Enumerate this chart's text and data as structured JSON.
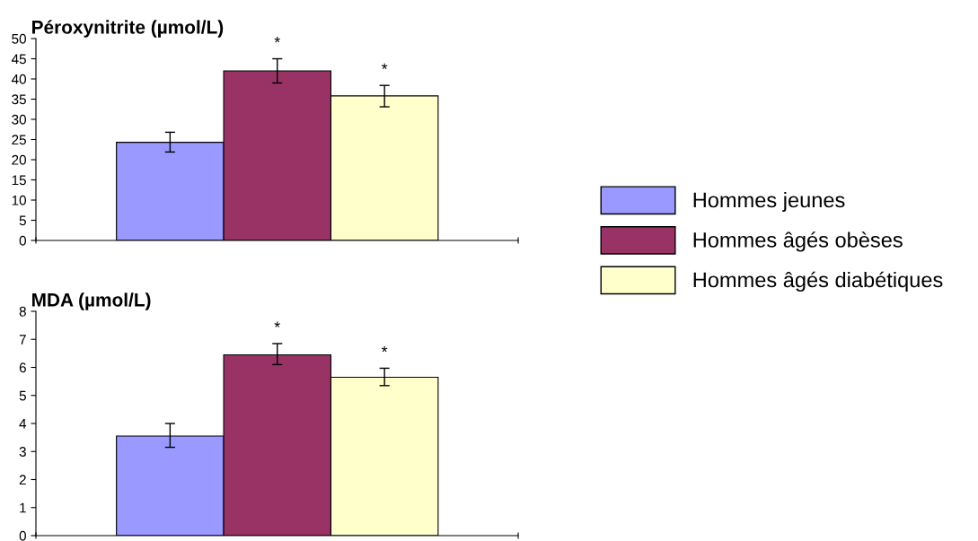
{
  "chart_data": [
    {
      "type": "bar",
      "title": "Péroxynitrite (µmol/L)",
      "categories": [
        null
      ],
      "ylim": [
        0,
        50
      ],
      "yticks": [
        0,
        5,
        10,
        15,
        20,
        25,
        30,
        35,
        40,
        45,
        50
      ],
      "grid": false,
      "legend": "right",
      "series": [
        {
          "name": "Hommes jeunes",
          "color": "#9999ff",
          "values": [
            24.3
          ],
          "errors": [
            [
              21.9,
              26.8
            ]
          ]
        },
        {
          "name": "Hommes âgés obèses",
          "color": "#993366",
          "values": [
            42
          ],
          "errors": [
            [
              39,
              45
            ]
          ]
        },
        {
          "name": "Hommes âgés diabétiques",
          "color": "#ffffcc",
          "values": [
            35.8
          ],
          "errors": [
            [
              33.1,
              38.4
            ]
          ]
        }
      ],
      "annotations": [
        "*",
        "*"
      ]
    },
    {
      "type": "bar",
      "title": "MDA (µmol/L)",
      "categories": [
        null
      ],
      "ylim": [
        0,
        8
      ],
      "yticks": [
        0,
        1,
        2,
        3,
        4,
        5,
        6,
        7,
        8
      ],
      "grid": false,
      "series": [
        {
          "color": "#9999ff",
          "values": [
            3.55
          ],
          "errors": [
            [
              3.15,
              4.0
            ]
          ]
        },
        {
          "color": "#993366",
          "values": [
            6.45
          ],
          "errors": [
            [
              6.1,
              6.85
            ]
          ]
        },
        {
          "color": "#ffffcc",
          "values": [
            5.65
          ],
          "errors": [
            [
              5.35,
              5.97
            ]
          ]
        }
      ],
      "annotations": [
        "*",
        "*"
      ]
    }
  ]
}
